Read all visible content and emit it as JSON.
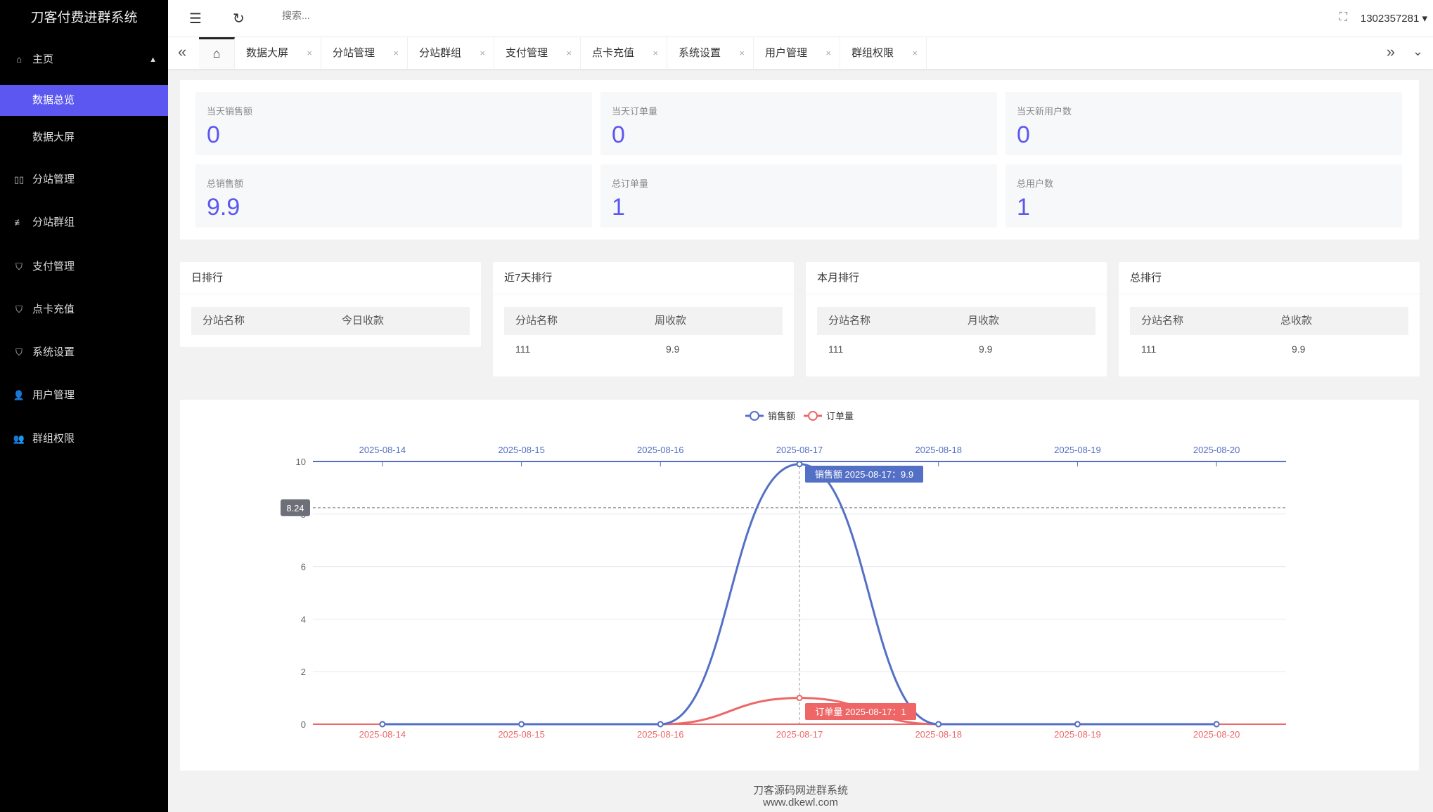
{
  "app": {
    "title": "刀客付费进群系统"
  },
  "sidebar": {
    "items": [
      {
        "label": "主页",
        "icon": "home-icon",
        "expanded": true
      },
      {
        "label": "数据总览",
        "active": true
      },
      {
        "label": "数据大屏"
      },
      {
        "label": "分站管理",
        "icon": "columns-icon"
      },
      {
        "label": "分站群组",
        "icon": "sliders-icon"
      },
      {
        "label": "支付管理",
        "icon": "shield-icon"
      },
      {
        "label": "点卡充值",
        "icon": "shield-icon"
      },
      {
        "label": "系统设置",
        "icon": "shield-icon"
      },
      {
        "label": "用户管理",
        "icon": "user-icon"
      },
      {
        "label": "群组权限",
        "icon": "users-icon"
      }
    ]
  },
  "header": {
    "search_placeholder": "搜索...",
    "user": "1302357281"
  },
  "tabs": [
    "数据大屏",
    "分站管理",
    "分站群组",
    "支付管理",
    "点卡充值",
    "系统设置",
    "用户管理",
    "群组权限"
  ],
  "stats": [
    {
      "label": "当天销售额",
      "value": "0"
    },
    {
      "label": "当天订单量",
      "value": "0"
    },
    {
      "label": "当天新用户数",
      "value": "0"
    },
    {
      "label": "总销售额",
      "value": "9.9"
    },
    {
      "label": "总订单量",
      "value": "1"
    },
    {
      "label": "总用户数",
      "value": "1"
    }
  ],
  "rankings": [
    {
      "title": "日排行",
      "cols": [
        "分站名称",
        "今日收款"
      ],
      "rows": []
    },
    {
      "title": "近7天排行",
      "cols": [
        "分站名称",
        "周收款"
      ],
      "rows": [
        [
          "111",
          "9.9"
        ]
      ]
    },
    {
      "title": "本月排行",
      "cols": [
        "分站名称",
        "月收款"
      ],
      "rows": [
        [
          "111",
          "9.9"
        ]
      ]
    },
    {
      "title": "总排行",
      "cols": [
        "分站名称",
        "总收款"
      ],
      "rows": [
        [
          "111",
          "9.9"
        ]
      ]
    }
  ],
  "chart_data": {
    "type": "line",
    "smooth": true,
    "categories": [
      "2025-08-14",
      "2025-08-15",
      "2025-08-16",
      "2025-08-17",
      "2025-08-18",
      "2025-08-19",
      "2025-08-20"
    ],
    "series": [
      {
        "name": "销售额",
        "values": [
          0,
          0,
          0,
          9.9,
          0,
          0,
          0
        ],
        "color": "#5470c6",
        "x_axis": "top"
      },
      {
        "name": "订单量",
        "values": [
          0,
          0,
          0,
          1,
          0,
          0,
          0
        ],
        "color": "#ee6666",
        "x_axis": "bottom"
      }
    ],
    "ylim": [
      0,
      10
    ],
    "yticks": [
      0,
      2,
      4,
      6,
      8,
      10
    ],
    "legend": "top-center",
    "grid": true,
    "axis_pointer": {
      "category": "2025-08-17",
      "y_value": "8.24",
      "top_label": "销售额  2025-08-17：9.9",
      "bottom_label": "订单量  2025-08-17：1"
    }
  },
  "footer": {
    "line1": "刀客源码网进群系统",
    "line2": "www.dkewl.com"
  }
}
